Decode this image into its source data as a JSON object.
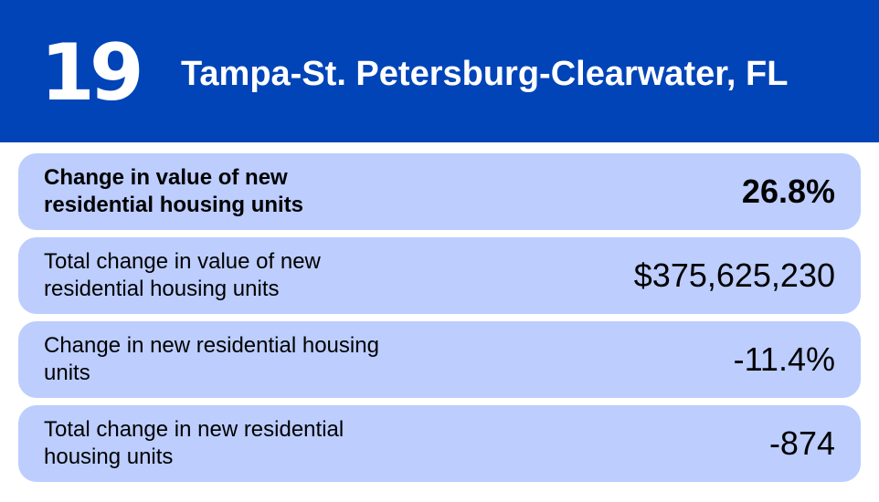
{
  "header": {
    "rank": "19",
    "metro": "Tampa-St. Petersburg-Clearwater, FL",
    "background_color": "#0044b8"
  },
  "rows": [
    {
      "label": "Change in value of new residential housing units",
      "value": "26.8%"
    },
    {
      "label": "Total change in value of new residential housing units",
      "value": "$375,625,230"
    },
    {
      "label": "Change in new residential housing units",
      "value": "-11.4%"
    },
    {
      "label": "Total change in new residential housing units",
      "value": "-874"
    }
  ],
  "row_color": "#bccdfe"
}
